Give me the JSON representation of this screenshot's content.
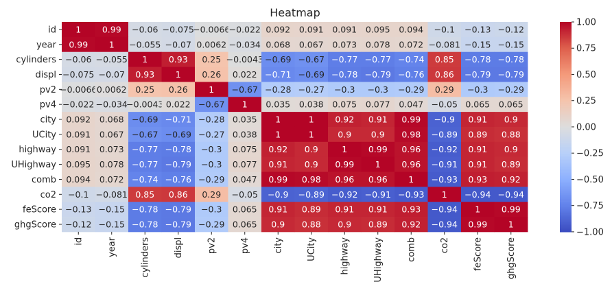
{
  "chart_data": {
    "type": "heatmap",
    "title": "Heatmap",
    "xlabel": "",
    "ylabel": "",
    "colormap": "coolwarm",
    "vmin": -1.0,
    "vmax": 1.0,
    "colorbar_ticks": [
      "1.00",
      "0.75",
      "0.50",
      "0.25",
      "0.00",
      "−0.25",
      "−0.50",
      "−0.75",
      "−1.00"
    ],
    "colorbar_tick_values": [
      1.0,
      0.75,
      0.5,
      0.25,
      0.0,
      -0.25,
      -0.5,
      -0.75,
      -1.0
    ],
    "row_labels": [
      "id",
      "year",
      "cylinders",
      "displ",
      "pv2",
      "pv4",
      "city",
      "UCity",
      "highway",
      "UHighway",
      "comb",
      "co2",
      "feScore",
      "ghgScore"
    ],
    "col_labels": [
      "id",
      "year",
      "cylinders",
      "displ",
      "pv2",
      "pv4",
      "city",
      "UCity",
      "highway",
      "UHighway",
      "comb",
      "co2",
      "feScore",
      "ghgScore"
    ],
    "values": [
      [
        1,
        0.99,
        -0.06,
        -0.075,
        -0.0066,
        -0.022,
        0.092,
        0.091,
        0.091,
        0.095,
        0.094,
        -0.1,
        -0.13,
        -0.12
      ],
      [
        0.99,
        1,
        -0.055,
        -0.07,
        0.0062,
        -0.034,
        0.068,
        0.067,
        0.073,
        0.078,
        0.072,
        -0.081,
        -0.15,
        -0.15
      ],
      [
        -0.06,
        -0.055,
        1,
        0.93,
        0.25,
        -0.0043,
        -0.69,
        -0.67,
        -0.77,
        -0.77,
        -0.74,
        0.85,
        -0.78,
        -0.78
      ],
      [
        -0.075,
        -0.07,
        0.93,
        1,
        0.26,
        0.022,
        -0.71,
        -0.69,
        -0.78,
        -0.79,
        -0.76,
        0.86,
        -0.79,
        -0.79
      ],
      [
        -0.0066,
        0.0062,
        0.25,
        0.26,
        1,
        -0.67,
        -0.28,
        -0.27,
        -0.3,
        -0.3,
        -0.29,
        0.29,
        -0.3,
        -0.29
      ],
      [
        -0.022,
        -0.034,
        -0.0043,
        0.022,
        -0.67,
        1,
        0.035,
        0.038,
        0.075,
        0.077,
        0.047,
        -0.05,
        0.065,
        0.065
      ],
      [
        0.092,
        0.068,
        -0.69,
        -0.71,
        -0.28,
        0.035,
        1,
        1,
        0.92,
        0.91,
        0.99,
        -0.9,
        0.91,
        0.9
      ],
      [
        0.091,
        0.067,
        -0.67,
        -0.69,
        -0.27,
        0.038,
        1,
        1,
        0.9,
        0.9,
        0.98,
        -0.89,
        0.89,
        0.88
      ],
      [
        0.091,
        0.073,
        -0.77,
        -0.78,
        -0.3,
        0.075,
        0.92,
        0.9,
        1,
        0.99,
        0.96,
        -0.92,
        0.91,
        0.9
      ],
      [
        0.095,
        0.078,
        -0.77,
        -0.79,
        -0.3,
        0.077,
        0.91,
        0.9,
        0.99,
        1,
        0.96,
        -0.91,
        0.91,
        0.89
      ],
      [
        0.094,
        0.072,
        -0.74,
        -0.76,
        -0.29,
        0.047,
        0.99,
        0.98,
        0.96,
        0.96,
        1,
        -0.93,
        0.93,
        0.92
      ],
      [
        -0.1,
        -0.081,
        0.85,
        0.86,
        0.29,
        -0.05,
        -0.9,
        -0.89,
        -0.92,
        -0.91,
        -0.93,
        1,
        -0.94,
        -0.94
      ],
      [
        -0.13,
        -0.15,
        -0.78,
        -0.79,
        -0.3,
        0.065,
        0.91,
        0.89,
        0.91,
        0.91,
        0.93,
        -0.94,
        1,
        0.99
      ],
      [
        -0.12,
        -0.15,
        -0.78,
        -0.79,
        -0.29,
        0.065,
        0.9,
        0.88,
        0.9,
        0.89,
        0.92,
        -0.94,
        0.99,
        1
      ]
    ],
    "legend": "colorbar-right",
    "grid": false
  }
}
